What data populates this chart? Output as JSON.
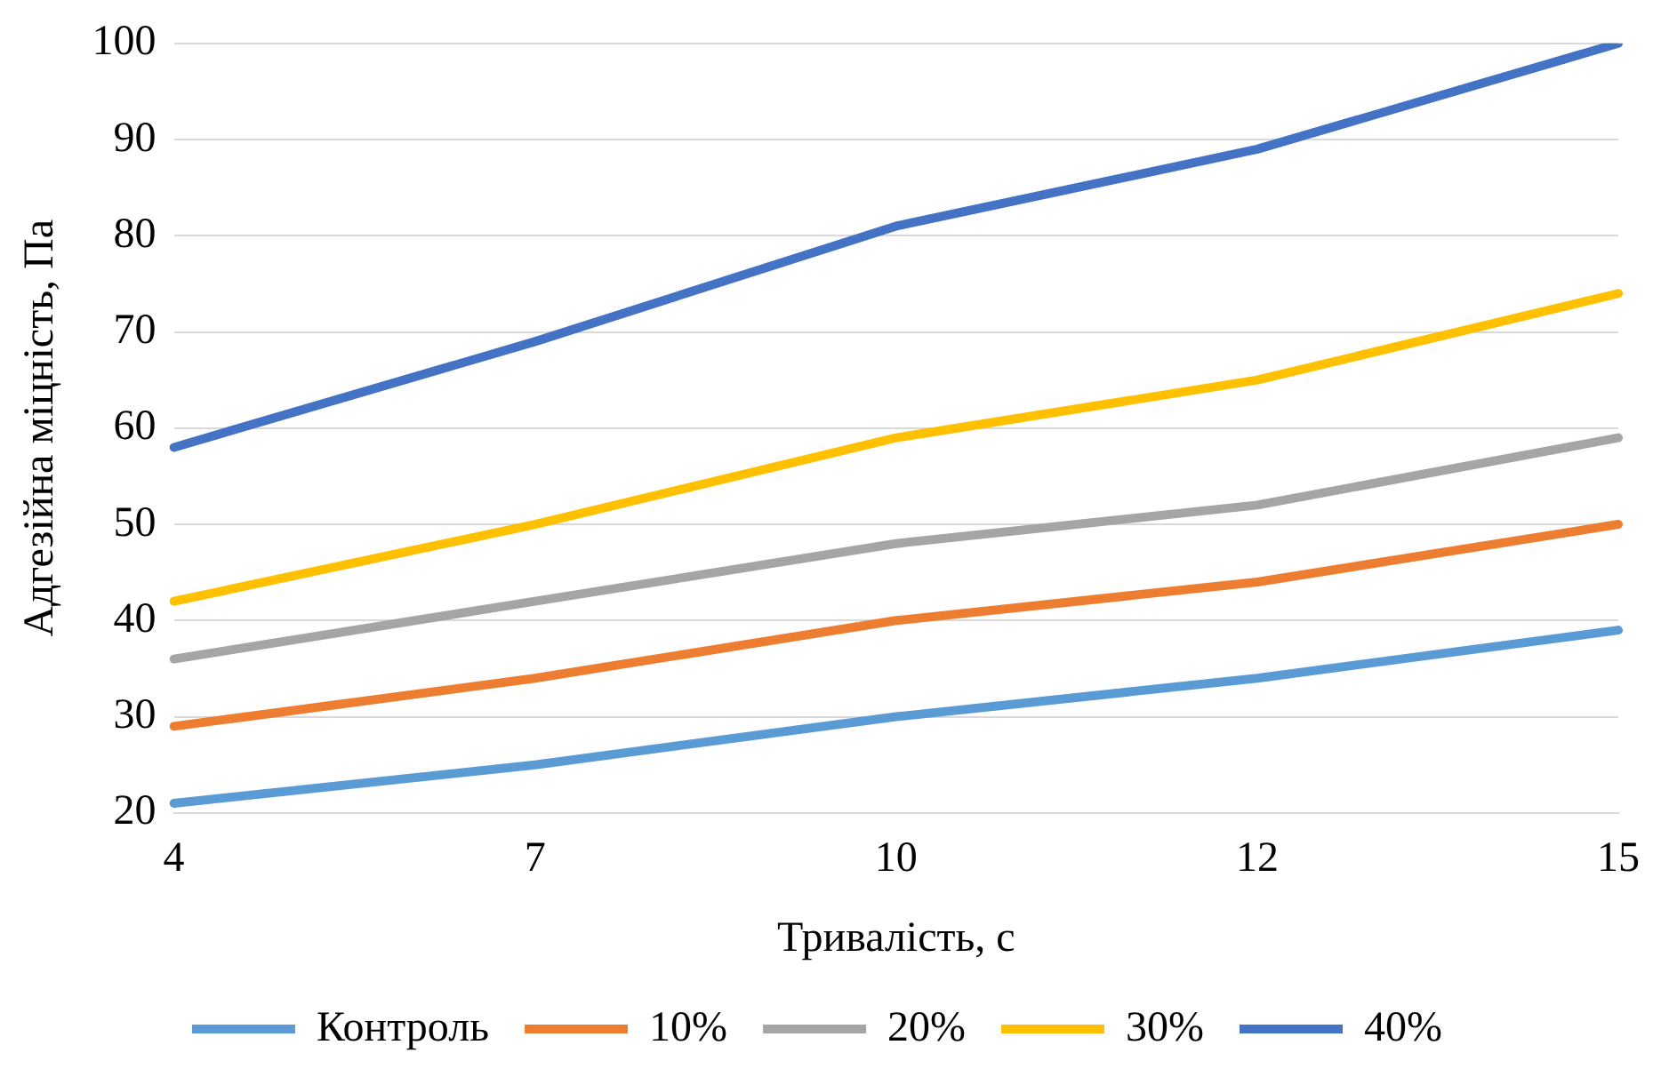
{
  "chart_data": {
    "type": "line",
    "xlabel": "Тривалість, с",
    "ylabel": "Адгезійна міцність, Па",
    "categories": [
      "4",
      "7",
      "10",
      "12",
      "15"
    ],
    "series": [
      {
        "name": "Контроль",
        "color": "#5b9bd5",
        "values": [
          21,
          25,
          30,
          34,
          39
        ]
      },
      {
        "name": "10%",
        "color": "#ed7d31",
        "values": [
          29,
          34,
          40,
          44,
          50
        ]
      },
      {
        "name": "20%",
        "color": "#a5a5a5",
        "values": [
          36,
          42,
          48,
          52,
          59
        ]
      },
      {
        "name": "30%",
        "color": "#ffc000",
        "values": [
          42,
          50,
          59,
          65,
          74
        ]
      },
      {
        "name": "40%",
        "color": "#4472c4",
        "values": [
          58,
          69,
          81,
          89,
          100
        ]
      }
    ],
    "ylim": [
      20,
      100
    ],
    "yticks": [
      20,
      30,
      40,
      50,
      60,
      70,
      80,
      90,
      100
    ],
    "grid": "y",
    "legend": "bottom",
    "marker": "none",
    "line_style": "solid"
  }
}
